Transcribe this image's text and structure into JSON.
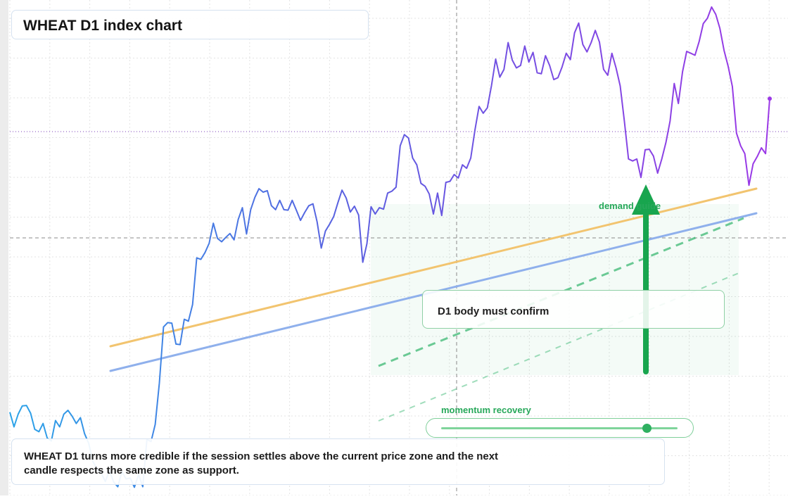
{
  "title": "WHEAT D1 index chart",
  "callout_text": "D1 body must confirm",
  "zone_label": "demand guide",
  "momentum": {
    "label": "momentum recovery",
    "level": 0.87
  },
  "note": "WHEAT D1 turns more credible if the session settles above the current price zone and the next candle respects the same zone as support.",
  "colors": {
    "price_start": "#2ba3e8",
    "price_mid": "#5b5fe0",
    "price_end": "#9b38e6",
    "line_orange": "#f2c46f",
    "line_blue": "#8fb0ec",
    "guide_green": "#2fb46a",
    "arrow_green": "#18a54e",
    "grid": "#e3e3e3"
  },
  "chart_data": {
    "type": "line",
    "series": [
      {
        "values": [
          16.8,
          13.8,
          16.4,
          18.1,
          18.2,
          16.6,
          13.3,
          12.8,
          14.5,
          11.5,
          10.9,
          15.1,
          13.8,
          16.4,
          17.2,
          16.0,
          14.5,
          15.7,
          12.4,
          10.4,
          6.7,
          5.2,
          4.3,
          2.6,
          4.8,
          2.5,
          1.5,
          4.6,
          3.1,
          3.3,
          1.4,
          4.0,
          1.5,
          11.2,
          10.8,
          14.3,
          22.8,
          34.3,
          35.2,
          35.1,
          30.8,
          30.7,
          35.9,
          35.5,
          38.9,
          48.5,
          48.2,
          49.6,
          51.5,
          55.6,
          52.5,
          51.8,
          52.7,
          53.5,
          52.2,
          56.4,
          58.8,
          53.4,
          58.4,
          60.9,
          62.7,
          62.0,
          62.3,
          59.2,
          58.4,
          60.3,
          58.4,
          58.3,
          60.3,
          58.3,
          56.2,
          57.8,
          59.2,
          59.6,
          55.9,
          50.5,
          54.0,
          55.4,
          57.0,
          59.8,
          62.4,
          60.8,
          57.9,
          59.1,
          57.3,
          47.6,
          51.4,
          59.0,
          57.5,
          58.8,
          58.5,
          61.8,
          62.2,
          63.0,
          71.5,
          73.8,
          73.1,
          69.0,
          67.6,
          63.8,
          63.2,
          61.6,
          57.5,
          61.8,
          57.2,
          64.0,
          64.2,
          65.6,
          64.9,
          67.6,
          66.9,
          69.0,
          74.7,
          79.6,
          78.2,
          79.3,
          83.9,
          89.3,
          85.6,
          87.2,
          92.7,
          89.1,
          87.5,
          88.0,
          92.0,
          88.7,
          90.7,
          86.5,
          86.3,
          90.0,
          88.0,
          85.1,
          85.5,
          87.7,
          90.5,
          89.2,
          94.7,
          96.7,
          92.3,
          90.8,
          92.7,
          95.2,
          92.8,
          87.2,
          86.0,
          90.5,
          87.5,
          83.8,
          76.6,
          68.8,
          68.4,
          68.8,
          65.0,
          70.7,
          70.8,
          69.4,
          65.9,
          68.8,
          72.2,
          76.6,
          84.3,
          80.2,
          86.7,
          90.9,
          90.5,
          90.1,
          92.9,
          96.6,
          97.7,
          100.0,
          98.5,
          95.6,
          91.1,
          87.8,
          83.7,
          74.1,
          71.5,
          69.9,
          63.4,
          67.8,
          69.3,
          71.1,
          69.9,
          81.2
        ]
      }
    ],
    "ylim": [
      0,
      100
    ],
    "grid": true
  }
}
